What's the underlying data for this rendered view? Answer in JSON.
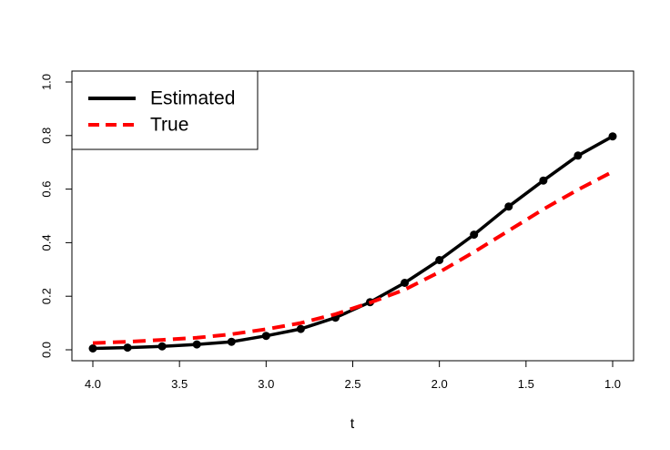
{
  "chart_data": {
    "type": "line",
    "title": "",
    "xlabel": "t",
    "ylabel": "",
    "x_reversed": true,
    "xlim": [
      4.0,
      1.0
    ],
    "ylim": [
      0.0,
      1.0
    ],
    "grid": false,
    "legend_position": "top-left",
    "x_ticks": [
      4.0,
      3.5,
      3.0,
      2.5,
      2.0,
      1.5,
      1.0
    ],
    "x_tick_labels": [
      "4.0",
      "3.5",
      "3.0",
      "2.5",
      "2.0",
      "1.5",
      "1.0"
    ],
    "y_ticks": [
      0.0,
      0.2,
      0.4,
      0.6,
      0.8,
      1.0
    ],
    "y_tick_labels": [
      "0.0",
      "0.2",
      "0.4",
      "0.6",
      "0.8",
      "1.0"
    ],
    "x": [
      4.0,
      3.8,
      3.6,
      3.4,
      3.2,
      3.0,
      2.8,
      2.6,
      2.4,
      2.2,
      2.0,
      1.8,
      1.6,
      1.4,
      1.2,
      1.0
    ],
    "series": [
      {
        "name": "Estimated",
        "color": "#000000",
        "line_style": "solid",
        "markers": true,
        "values": [
          0.005,
          0.008,
          0.013,
          0.02,
          0.03,
          0.052,
          0.078,
          0.12,
          0.178,
          0.25,
          0.335,
          0.43,
          0.535,
          0.632,
          0.725,
          0.797
        ]
      },
      {
        "name": "True",
        "color": "#ff0000",
        "line_style": "dashed",
        "markers": false,
        "values": [
          0.025,
          0.03,
          0.037,
          0.045,
          0.058,
          0.077,
          0.1,
          0.133,
          0.176,
          0.225,
          0.29,
          0.365,
          0.445,
          0.525,
          0.598,
          0.665
        ]
      }
    ]
  }
}
